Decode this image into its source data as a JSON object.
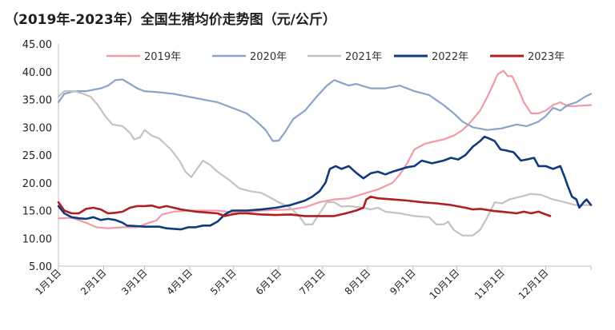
{
  "chart_data": {
    "type": "line",
    "title": "（2019年-2023年）全国生猪均价走势图（元/公斤）",
    "ylim": [
      5,
      45
    ],
    "yticks": [
      "5.00",
      "10.00",
      "15.00",
      "20.00",
      "25.00",
      "30.00",
      "35.00",
      "40.00",
      "45.00"
    ],
    "x_domain": [
      1,
      366
    ],
    "x_unit": "day of year",
    "x_ticks": [
      {
        "label": "1月1日",
        "x": 1
      },
      {
        "label": "2月1日",
        "x": 32
      },
      {
        "label": "3月1日",
        "x": 60
      },
      {
        "label": "4月1日",
        "x": 91
      },
      {
        "label": "5月1日",
        "x": 121
      },
      {
        "label": "6月1日",
        "x": 152
      },
      {
        "label": "7月1日",
        "x": 182
      },
      {
        "label": "8月1日",
        "x": 213
      },
      {
        "label": "9月1日",
        "x": 244
      },
      {
        "label": "10月1日",
        "x": 274
      },
      {
        "label": "11月1日",
        "x": 305
      },
      {
        "label": "12月1日",
        "x": 335
      }
    ],
    "legend_position": "top",
    "grid": false,
    "series": [
      {
        "name": "2019年",
        "color": "#f09aa6",
        "width": 2.2,
        "points": [
          [
            1,
            13.6
          ],
          [
            10,
            13.7
          ],
          [
            20,
            12.8
          ],
          [
            27,
            12.0
          ],
          [
            35,
            11.8
          ],
          [
            45,
            12.0
          ],
          [
            55,
            12.0
          ],
          [
            63,
            12.8
          ],
          [
            68,
            13.2
          ],
          [
            72,
            14.3
          ],
          [
            80,
            14.8
          ],
          [
            90,
            15.0
          ],
          [
            100,
            15.0
          ],
          [
            110,
            15.0
          ],
          [
            120,
            14.7
          ],
          [
            130,
            14.7
          ],
          [
            140,
            15.0
          ],
          [
            150,
            15.1
          ],
          [
            160,
            15.2
          ],
          [
            170,
            15.6
          ],
          [
            180,
            16.5
          ],
          [
            190,
            17.0
          ],
          [
            200,
            17.2
          ],
          [
            210,
            18.0
          ],
          [
            220,
            18.8
          ],
          [
            230,
            20.0
          ],
          [
            235,
            21.5
          ],
          [
            240,
            23.5
          ],
          [
            245,
            26.0
          ],
          [
            252,
            27.0
          ],
          [
            258,
            27.4
          ],
          [
            265,
            27.8
          ],
          [
            272,
            28.5
          ],
          [
            278,
            29.5
          ],
          [
            283,
            30.8
          ],
          [
            290,
            33.0
          ],
          [
            296,
            36.0
          ],
          [
            302,
            39.5
          ],
          [
            306,
            40.2
          ],
          [
            309,
            39.2
          ],
          [
            312,
            39.2
          ],
          [
            316,
            37.0
          ],
          [
            320,
            34.5
          ],
          [
            325,
            32.5
          ],
          [
            330,
            32.5
          ],
          [
            335,
            33.0
          ],
          [
            340,
            34.0
          ],
          [
            345,
            34.5
          ],
          [
            350,
            33.8
          ],
          [
            355,
            33.8
          ],
          [
            360,
            33.9
          ],
          [
            366,
            34.0
          ]
        ]
      },
      {
        "name": "2020年",
        "color": "#8aa4c8",
        "width": 2.2,
        "points": [
          [
            1,
            34.5
          ],
          [
            5,
            36.0
          ],
          [
            12,
            36.5
          ],
          [
            20,
            36.5
          ],
          [
            30,
            37.0
          ],
          [
            35,
            37.5
          ],
          [
            40,
            38.5
          ],
          [
            45,
            38.6
          ],
          [
            50,
            37.8
          ],
          [
            55,
            37.0
          ],
          [
            60,
            36.5
          ],
          [
            70,
            36.3
          ],
          [
            80,
            36.0
          ],
          [
            90,
            35.5
          ],
          [
            100,
            35.0
          ],
          [
            110,
            34.5
          ],
          [
            120,
            33.5
          ],
          [
            130,
            32.5
          ],
          [
            137,
            31.0
          ],
          [
            143,
            29.5
          ],
          [
            148,
            27.5
          ],
          [
            152,
            27.6
          ],
          [
            156,
            29.0
          ],
          [
            162,
            31.5
          ],
          [
            170,
            33.0
          ],
          [
            178,
            35.5
          ],
          [
            185,
            37.5
          ],
          [
            190,
            38.5
          ],
          [
            195,
            38.0
          ],
          [
            200,
            37.5
          ],
          [
            205,
            37.8
          ],
          [
            215,
            37.0
          ],
          [
            225,
            37.0
          ],
          [
            235,
            37.5
          ],
          [
            245,
            36.5
          ],
          [
            255,
            35.8
          ],
          [
            265,
            34.0
          ],
          [
            272,
            32.5
          ],
          [
            278,
            31.0
          ],
          [
            285,
            30.0
          ],
          [
            295,
            29.5
          ],
          [
            305,
            29.8
          ],
          [
            315,
            30.5
          ],
          [
            322,
            30.2
          ],
          [
            330,
            31.0
          ],
          [
            335,
            32.0
          ],
          [
            340,
            33.5
          ],
          [
            345,
            33.0
          ],
          [
            350,
            34.0
          ],
          [
            356,
            34.5
          ],
          [
            362,
            35.5
          ],
          [
            366,
            36.0
          ]
        ]
      },
      {
        "name": "2021年",
        "color": "#c3c3c3",
        "width": 2.2,
        "points": [
          [
            1,
            35.5
          ],
          [
            5,
            36.5
          ],
          [
            12,
            36.5
          ],
          [
            18,
            36.0
          ],
          [
            23,
            35.5
          ],
          [
            28,
            34.0
          ],
          [
            33,
            32.0
          ],
          [
            38,
            30.5
          ],
          [
            45,
            30.2
          ],
          [
            50,
            29.0
          ],
          [
            53,
            27.8
          ],
          [
            57,
            28.2
          ],
          [
            60,
            29.5
          ],
          [
            65,
            28.5
          ],
          [
            70,
            28.0
          ],
          [
            78,
            26.0
          ],
          [
            84,
            24.0
          ],
          [
            88,
            22.0
          ],
          [
            92,
            21.0
          ],
          [
            96,
            22.5
          ],
          [
            100,
            24.0
          ],
          [
            105,
            23.2
          ],
          [
            110,
            22.0
          ],
          [
            118,
            20.5
          ],
          [
            125,
            19.0
          ],
          [
            132,
            18.5
          ],
          [
            140,
            18.2
          ],
          [
            145,
            17.5
          ],
          [
            152,
            16.5
          ],
          [
            160,
            15.5
          ],
          [
            166,
            14.0
          ],
          [
            170,
            12.5
          ],
          [
            175,
            12.5
          ],
          [
            180,
            14.5
          ],
          [
            185,
            16.5
          ],
          [
            190,
            16.5
          ],
          [
            195,
            15.7
          ],
          [
            200,
            15.8
          ],
          [
            210,
            15.5
          ],
          [
            215,
            15.2
          ],
          [
            220,
            15.5
          ],
          [
            225,
            14.8
          ],
          [
            235,
            14.5
          ],
          [
            245,
            14.0
          ],
          [
            255,
            13.8
          ],
          [
            260,
            12.5
          ],
          [
            265,
            12.5
          ],
          [
            268,
            13.0
          ],
          [
            272,
            11.5
          ],
          [
            278,
            10.5
          ],
          [
            285,
            10.5
          ],
          [
            290,
            11.5
          ],
          [
            295,
            13.8
          ],
          [
            300,
            16.5
          ],
          [
            305,
            16.3
          ],
          [
            310,
            17.0
          ],
          [
            318,
            17.5
          ],
          [
            325,
            18.0
          ],
          [
            332,
            17.8
          ],
          [
            340,
            17.0
          ],
          [
            348,
            16.5
          ],
          [
            355,
            16.0
          ],
          [
            366,
            16.0
          ]
        ]
      },
      {
        "name": "2022年",
        "color": "#0f3a7c",
        "width": 2.6,
        "points": [
          [
            1,
            15.8
          ],
          [
            5,
            14.5
          ],
          [
            10,
            13.8
          ],
          [
            15,
            13.6
          ],
          [
            20,
            13.5
          ],
          [
            25,
            13.8
          ],
          [
            30,
            13.3
          ],
          [
            35,
            13.5
          ],
          [
            40,
            13.3
          ],
          [
            45,
            12.8
          ],
          [
            48,
            12.3
          ],
          [
            55,
            12.2
          ],
          [
            60,
            12.1
          ],
          [
            65,
            12.1
          ],
          [
            70,
            12.1
          ],
          [
            75,
            11.8
          ],
          [
            80,
            11.7
          ],
          [
            85,
            11.6
          ],
          [
            90,
            12.0
          ],
          [
            95,
            12.0
          ],
          [
            100,
            12.3
          ],
          [
            105,
            12.3
          ],
          [
            110,
            13.0
          ],
          [
            115,
            14.3
          ],
          [
            120,
            15.0
          ],
          [
            130,
            15.0
          ],
          [
            140,
            15.2
          ],
          [
            150,
            15.5
          ],
          [
            160,
            16.0
          ],
          [
            170,
            16.8
          ],
          [
            175,
            17.5
          ],
          [
            180,
            18.5
          ],
          [
            184,
            20.0
          ],
          [
            187,
            22.5
          ],
          [
            191,
            23.0
          ],
          [
            195,
            22.5
          ],
          [
            200,
            23.0
          ],
          [
            205,
            21.8
          ],
          [
            210,
            20.8
          ],
          [
            215,
            21.7
          ],
          [
            220,
            22.0
          ],
          [
            225,
            21.5
          ],
          [
            230,
            22.0
          ],
          [
            240,
            22.8
          ],
          [
            245,
            23.0
          ],
          [
            250,
            24.0
          ],
          [
            257,
            23.5
          ],
          [
            265,
            24.0
          ],
          [
            270,
            24.5
          ],
          [
            275,
            24.2
          ],
          [
            280,
            25.0
          ],
          [
            285,
            26.5
          ],
          [
            290,
            27.5
          ],
          [
            293,
            28.3
          ],
          [
            296,
            28.0
          ],
          [
            300,
            27.5
          ],
          [
            304,
            26.0
          ],
          [
            308,
            25.8
          ],
          [
            313,
            25.5
          ],
          [
            318,
            24.0
          ],
          [
            322,
            24.2
          ],
          [
            327,
            24.5
          ],
          [
            330,
            23.0
          ],
          [
            335,
            23.0
          ],
          [
            340,
            22.5
          ],
          [
            345,
            23.0
          ],
          [
            348,
            21.0
          ],
          [
            350,
            19.5
          ],
          [
            353,
            17.5
          ],
          [
            356,
            17.0
          ],
          [
            358,
            15.5
          ],
          [
            361,
            16.5
          ],
          [
            363,
            17.0
          ],
          [
            366,
            16.0
          ]
        ]
      },
      {
        "name": "2023年",
        "color": "#ae1e22",
        "width": 2.6,
        "points": [
          [
            1,
            16.5
          ],
          [
            5,
            15.0
          ],
          [
            10,
            14.5
          ],
          [
            15,
            14.5
          ],
          [
            20,
            15.3
          ],
          [
            25,
            15.5
          ],
          [
            30,
            15.2
          ],
          [
            35,
            14.5
          ],
          [
            40,
            14.6
          ],
          [
            45,
            14.8
          ],
          [
            50,
            15.5
          ],
          [
            55,
            15.8
          ],
          [
            60,
            15.8
          ],
          [
            65,
            15.9
          ],
          [
            70,
            15.5
          ],
          [
            75,
            15.8
          ],
          [
            80,
            15.5
          ],
          [
            85,
            15.2
          ],
          [
            90,
            15.0
          ],
          [
            95,
            14.8
          ],
          [
            100,
            14.7
          ],
          [
            110,
            14.5
          ],
          [
            115,
            14.0
          ],
          [
            120,
            14.3
          ],
          [
            125,
            14.5
          ],
          [
            130,
            14.5
          ],
          [
            140,
            14.3
          ],
          [
            150,
            14.2
          ],
          [
            160,
            14.3
          ],
          [
            170,
            14.0
          ],
          [
            180,
            14.0
          ],
          [
            190,
            14.0
          ],
          [
            198,
            14.5
          ],
          [
            205,
            15.0
          ],
          [
            210,
            15.5
          ],
          [
            212,
            17.0
          ],
          [
            215,
            17.5
          ],
          [
            220,
            17.2
          ],
          [
            230,
            17.0
          ],
          [
            240,
            16.8
          ],
          [
            250,
            16.5
          ],
          [
            260,
            16.3
          ],
          [
            270,
            16.0
          ],
          [
            280,
            15.5
          ],
          [
            285,
            15.2
          ],
          [
            290,
            15.3
          ],
          [
            300,
            14.9
          ],
          [
            305,
            14.8
          ],
          [
            315,
            14.5
          ],
          [
            320,
            14.8
          ],
          [
            325,
            14.5
          ],
          [
            330,
            14.8
          ],
          [
            335,
            14.3
          ],
          [
            338,
            14.0
          ]
        ]
      }
    ]
  }
}
